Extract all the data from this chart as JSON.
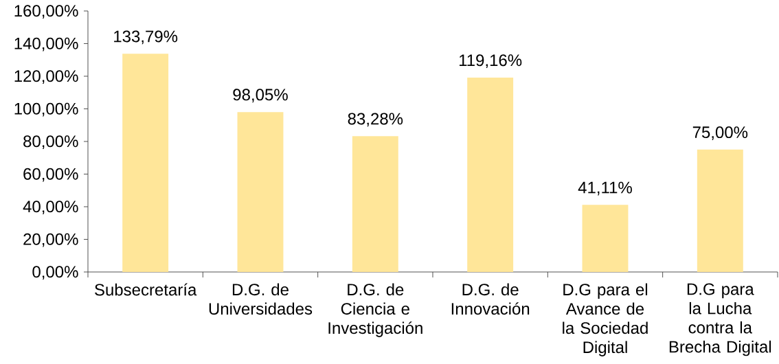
{
  "chart_data": {
    "type": "bar",
    "categories": [
      "Subsecretaría",
      "D.G. de Universidades",
      "D.G. de Ciencia e Investigación",
      "D.G. de Innovación",
      "D.G para el Avance de la Sociedad Digital",
      "D.G para la Lucha contra la Brecha Digital"
    ],
    "values": [
      133.79,
      98.05,
      83.28,
      119.16,
      41.11,
      75.0
    ],
    "value_labels": [
      "133,79%",
      "98,05%",
      "83,28%",
      "119,16%",
      "41,11%",
      "75,00%"
    ],
    "color": "#ffe699",
    "ylim": [
      0,
      160
    ],
    "yticks": [
      {
        "value": 0,
        "label": "0,00%"
      },
      {
        "value": 20,
        "label": "20,00%"
      },
      {
        "value": 40,
        "label": "40,00%"
      },
      {
        "value": 60,
        "label": "60,00%"
      },
      {
        "value": 80,
        "label": "80,00%"
      },
      {
        "value": 100,
        "label": "100,00%"
      },
      {
        "value": 120,
        "label": "120,00%"
      },
      {
        "value": 140,
        "label": "140,00%"
      },
      {
        "value": 160,
        "label": "160,00%"
      }
    ]
  }
}
